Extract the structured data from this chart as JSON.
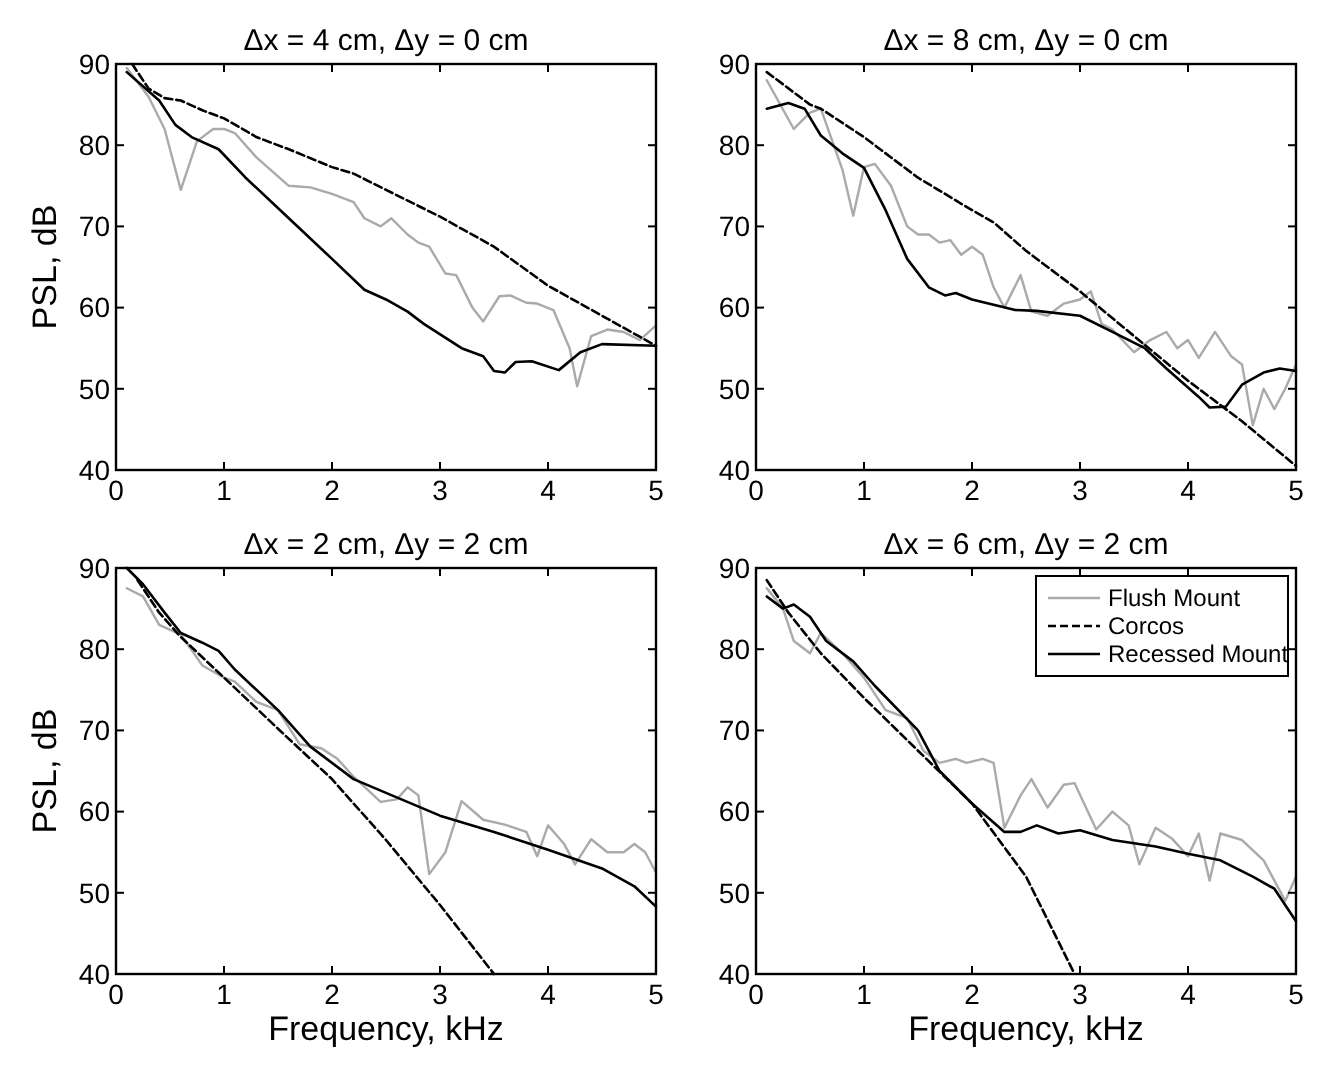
{
  "chart_data": [
    {
      "type": "line",
      "title": "Δx = 4 cm,  Δy = 0 cm",
      "ylabel": "PSL,  dB",
      "xlim": [
        0,
        5
      ],
      "ylim": [
        40,
        90
      ],
      "xticks": [
        0,
        1,
        2,
        3,
        4,
        5
      ],
      "yticks": [
        40,
        50,
        60,
        70,
        80,
        90
      ],
      "grid": false,
      "legend": false,
      "series": [
        {
          "color": "#aaaaaa",
          "line_style": "solid",
          "x": [
            0.1,
            0.3,
            0.45,
            0.6,
            0.75,
            0.9,
            1.0,
            1.1,
            1.3,
            1.6,
            1.8,
            2.0,
            2.2,
            2.3,
            2.45,
            2.55,
            2.7,
            2.8,
            2.9,
            3.05,
            3.15,
            3.3,
            3.4,
            3.55,
            3.65,
            3.8,
            3.9,
            4.05,
            4.2,
            4.27,
            4.4,
            4.55,
            4.7,
            4.85,
            5.0
          ],
          "values": [
            89.5,
            86,
            82,
            74.5,
            80.5,
            82,
            82,
            81.5,
            78.5,
            75,
            74.8,
            74,
            73,
            71,
            70,
            71,
            69,
            68,
            67.5,
            64.2,
            64,
            60,
            58.3,
            61.4,
            61.5,
            60.6,
            60.5,
            59.7,
            55,
            50.3,
            56.5,
            57.3,
            57,
            56,
            57.8
          ]
        },
        {
          "color": "#000000",
          "line_style": "dashed",
          "x": [
            0.15,
            0.3,
            0.45,
            0.6,
            0.8,
            1.0,
            1.3,
            1.6,
            2.0,
            2.2,
            2.5,
            3.0,
            3.5,
            4.0,
            4.5,
            5.0
          ],
          "values": [
            90,
            87,
            85.8,
            85.5,
            84.3,
            83.3,
            81,
            79.5,
            77.3,
            76.5,
            74.5,
            71.2,
            67.5,
            62.7,
            59,
            55.3
          ]
        },
        {
          "color": "#000000",
          "line_style": "solid",
          "x": [
            0.1,
            0.4,
            0.55,
            0.7,
            0.95,
            1.2,
            1.6,
            2.0,
            2.3,
            2.5,
            2.7,
            2.85,
            3.2,
            3.4,
            3.5,
            3.6,
            3.7,
            3.85,
            4.1,
            4.3,
            4.5,
            5.0
          ],
          "values": [
            89,
            85.5,
            82.5,
            81,
            79.5,
            76,
            71,
            66,
            62.2,
            61,
            59.5,
            58,
            55,
            54,
            52.2,
            52,
            53.3,
            53.4,
            52.3,
            54.5,
            55.5,
            55.3
          ]
        }
      ]
    },
    {
      "type": "line",
      "title": "Δx = 8 cm,  Δy = 0 cm",
      "xlim": [
        0,
        5
      ],
      "ylim": [
        40,
        90
      ],
      "xticks": [
        0,
        1,
        2,
        3,
        4,
        5
      ],
      "yticks": [
        40,
        50,
        60,
        70,
        80,
        90
      ],
      "grid": false,
      "legend": false,
      "series": [
        {
          "color": "#aaaaaa",
          "line_style": "solid",
          "x": [
            0.1,
            0.35,
            0.5,
            0.6,
            0.8,
            0.9,
            1.0,
            1.1,
            1.25,
            1.4,
            1.5,
            1.6,
            1.7,
            1.8,
            1.9,
            2.0,
            2.1,
            2.2,
            2.3,
            2.45,
            2.55,
            2.7,
            2.85,
            3.0,
            3.1,
            3.2,
            3.3,
            3.5,
            3.65,
            3.8,
            3.9,
            4.0,
            4.1,
            4.25,
            4.4,
            4.5,
            4.6,
            4.7,
            4.8,
            4.9,
            5.0
          ],
          "values": [
            88,
            82,
            84,
            84.5,
            77,
            71.3,
            77.3,
            77.7,
            75,
            70,
            69,
            69,
            68,
            68.3,
            66.5,
            67.5,
            66.5,
            62.5,
            60,
            64,
            59.5,
            59,
            60.5,
            61,
            62,
            58,
            57.3,
            54.5,
            56,
            57,
            55,
            56,
            53.8,
            57,
            54,
            53,
            45.5,
            50,
            47.5,
            50,
            53
          ]
        },
        {
          "color": "#000000",
          "line_style": "dashed",
          "x": [
            0.1,
            0.25,
            0.5,
            0.6,
            1.0,
            1.5,
            2.0,
            2.2,
            2.5,
            3.0,
            3.5,
            4.0,
            4.5,
            5.0
          ],
          "values": [
            89,
            87.5,
            85,
            84.5,
            81,
            76,
            72,
            70.5,
            67,
            62,
            56.5,
            51,
            46,
            40.5
          ]
        },
        {
          "color": "#000000",
          "line_style": "solid",
          "x": [
            0.1,
            0.3,
            0.45,
            0.6,
            0.8,
            1.0,
            1.2,
            1.4,
            1.6,
            1.75,
            1.85,
            2.0,
            2.4,
            2.6,
            3.0,
            3.3,
            3.6,
            3.8,
            4.1,
            4.2,
            4.35,
            4.5,
            4.7,
            4.85,
            5.0
          ],
          "values": [
            84.5,
            85.2,
            84.5,
            81.2,
            79,
            77.2,
            72,
            66,
            62.5,
            61.5,
            61.8,
            61,
            59.7,
            59.6,
            59,
            57,
            55,
            52.5,
            49,
            47.7,
            47.8,
            50.5,
            52,
            52.5,
            52.2
          ]
        }
      ]
    },
    {
      "type": "line",
      "title": "Δx = 2 cm,  Δy = 2 cm",
      "xlabel": "Frequency,  kHz",
      "ylabel": "PSL,  dB",
      "xlim": [
        0,
        5
      ],
      "ylim": [
        40,
        90
      ],
      "xticks": [
        0,
        1,
        2,
        3,
        4,
        5
      ],
      "yticks": [
        40,
        50,
        60,
        70,
        80,
        90
      ],
      "grid": false,
      "legend": false,
      "series": [
        {
          "color": "#aaaaaa",
          "line_style": "solid",
          "x": [
            0.1,
            0.25,
            0.4,
            0.6,
            0.8,
            1.0,
            1.1,
            1.3,
            1.5,
            1.7,
            1.9,
            2.05,
            2.2,
            2.45,
            2.6,
            2.7,
            2.8,
            2.9,
            3.05,
            3.2,
            3.4,
            3.6,
            3.8,
            3.9,
            4.0,
            4.15,
            4.25,
            4.4,
            4.55,
            4.7,
            4.8,
            4.9,
            5.0
          ],
          "values": [
            87.5,
            86.5,
            83,
            81.8,
            78,
            76.5,
            76,
            73.5,
            72.5,
            68.3,
            67.8,
            66.5,
            64.3,
            61.2,
            61.5,
            63,
            62,
            52.3,
            55,
            61.3,
            59,
            58.4,
            57.5,
            54.5,
            58.3,
            56,
            53.5,
            56.6,
            55,
            55,
            56,
            55,
            52.5
          ]
        },
        {
          "color": "#000000",
          "line_style": "dashed",
          "x": [
            0.2,
            0.4,
            0.6,
            1.0,
            1.5,
            2.0,
            2.5,
            3.0,
            3.5
          ],
          "values": [
            88.5,
            84.5,
            81.5,
            76.5,
            70.2,
            64,
            56.5,
            48.5,
            40
          ]
        },
        {
          "color": "#000000",
          "line_style": "solid",
          "x": [
            0.1,
            0.25,
            0.45,
            0.6,
            0.8,
            0.95,
            1.1,
            1.5,
            1.8,
            2.2,
            2.5,
            3.0,
            3.5,
            4.0,
            4.5,
            4.8,
            5.0
          ],
          "values": [
            90,
            88,
            84.5,
            82,
            80.8,
            79.8,
            77.5,
            72.5,
            68,
            64,
            62.3,
            59.5,
            57.5,
            55.3,
            53,
            50.8,
            48.3
          ]
        }
      ]
    },
    {
      "type": "line",
      "title": "Δx = 6 cm,  Δy = 2 cm",
      "xlabel": "Frequency,  kHz",
      "xlim": [
        0,
        5
      ],
      "ylim": [
        40,
        90
      ],
      "xticks": [
        0,
        1,
        2,
        3,
        4,
        5
      ],
      "yticks": [
        40,
        50,
        60,
        70,
        80,
        90
      ],
      "grid": false,
      "legend": "top right",
      "series": [
        {
          "name": "Flush Mount",
          "color": "#aaaaaa",
          "line_style": "solid",
          "x": [
            0.1,
            0.25,
            0.35,
            0.5,
            0.6,
            0.8,
            1.0,
            1.2,
            1.4,
            1.55,
            1.7,
            1.85,
            1.95,
            2.1,
            2.2,
            2.3,
            2.45,
            2.55,
            2.7,
            2.85,
            2.95,
            3.15,
            3.3,
            3.45,
            3.55,
            3.7,
            3.85,
            4.0,
            4.1,
            4.2,
            4.3,
            4.5,
            4.7,
            4.9,
            5.0
          ],
          "values": [
            87.5,
            85,
            81,
            79.5,
            82,
            79.5,
            76.5,
            72.5,
            71.5,
            67.5,
            66,
            66.5,
            66,
            66.5,
            66,
            58,
            62,
            64,
            60.5,
            63.3,
            63.5,
            57.8,
            60,
            58.3,
            53.5,
            58,
            56.7,
            54.5,
            57.3,
            51.5,
            57.3,
            56.5,
            54,
            49,
            52
          ]
        },
        {
          "name": "Corcos",
          "color": "#000000",
          "line_style": "dashed",
          "x": [
            0.1,
            0.3,
            0.6,
            1.0,
            1.5,
            2.0,
            2.5,
            2.95
          ],
          "values": [
            88.5,
            84.5,
            79.5,
            74,
            67.5,
            61,
            52,
            40
          ]
        },
        {
          "name": "Recessed Mount",
          "color": "#000000",
          "line_style": "solid",
          "x": [
            0.1,
            0.25,
            0.35,
            0.5,
            0.65,
            0.9,
            1.1,
            1.5,
            1.7,
            2.0,
            2.3,
            2.45,
            2.6,
            2.8,
            3.0,
            3.3,
            3.7,
            4.0,
            4.3,
            4.6,
            4.8,
            5.0
          ],
          "values": [
            86.5,
            85,
            85.5,
            84,
            81,
            78.5,
            75.5,
            70,
            65,
            61,
            57.5,
            57.5,
            58.3,
            57.3,
            57.7,
            56.5,
            55.7,
            54.8,
            54,
            52,
            50.5,
            46.5
          ]
        }
      ]
    }
  ]
}
